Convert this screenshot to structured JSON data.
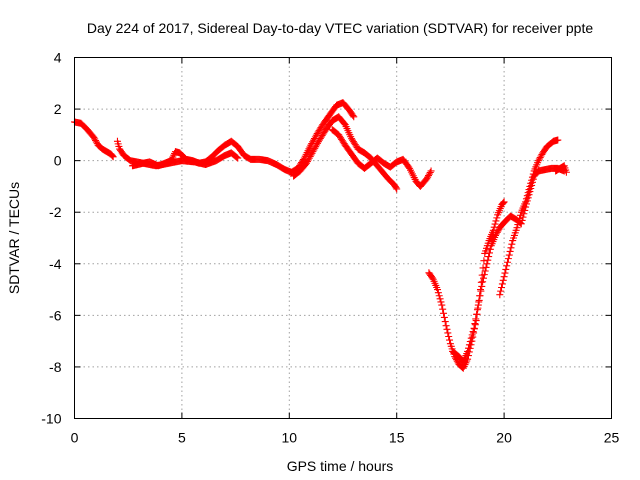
{
  "chart_data": {
    "type": "scatter",
    "title": "Day 224 of 2017, Sidereal Day-to-day VTEC variation (SDTVAR) for receiver ppte",
    "xlabel": "GPS time / hours",
    "ylabel": "SDTVAR / TECUs",
    "xlim": [
      0,
      25
    ],
    "ylim": [
      -10,
      4
    ],
    "xticks": [
      0,
      5,
      10,
      15,
      20,
      25
    ],
    "yticks": [
      -10,
      -8,
      -6,
      -4,
      -2,
      0,
      2,
      4
    ],
    "xtick_labels": [
      "0",
      "5",
      "10",
      "15",
      "20",
      "25"
    ],
    "ytick_labels": [
      "-10",
      "-8",
      "-6",
      "-4",
      "-2",
      "0",
      "2",
      "4"
    ],
    "grid": true,
    "marker": "+",
    "series": [
      {
        "name": "track-1",
        "color": "#ff0000",
        "points": [
          [
            0.0,
            1.5
          ],
          [
            0.3,
            1.45
          ],
          [
            0.6,
            1.2
          ],
          [
            0.9,
            0.9
          ],
          [
            1.1,
            0.6
          ],
          [
            1.3,
            0.45
          ],
          [
            1.5,
            0.35
          ],
          [
            1.7,
            0.25
          ],
          [
            1.8,
            0.15
          ]
        ]
      },
      {
        "name": "track-2",
        "color": "#ff0000",
        "points": [
          [
            2.0,
            0.75
          ],
          [
            2.1,
            0.45
          ],
          [
            2.3,
            0.2
          ],
          [
            2.6,
            0.0
          ],
          [
            2.9,
            -0.05
          ],
          [
            3.2,
            -0.1
          ],
          [
            3.5,
            -0.05
          ],
          [
            3.9,
            -0.2
          ],
          [
            4.2,
            -0.1
          ],
          [
            4.5,
            0.0
          ],
          [
            4.7,
            0.35
          ],
          [
            4.9,
            0.3
          ],
          [
            5.2,
            0.05
          ],
          [
            5.5,
            0.0
          ],
          [
            5.8,
            -0.1
          ],
          [
            6.1,
            -0.05
          ],
          [
            6.4,
            0.15
          ],
          [
            6.7,
            0.4
          ],
          [
            7.0,
            0.6
          ],
          [
            7.3,
            0.75
          ],
          [
            7.6,
            0.55
          ],
          [
            7.9,
            0.2
          ],
          [
            8.2,
            0.05
          ],
          [
            8.6,
            0.05
          ],
          [
            9.0,
            0.0
          ],
          [
            9.4,
            -0.15
          ],
          [
            9.8,
            -0.35
          ],
          [
            10.1,
            -0.45
          ],
          [
            10.4,
            -0.3
          ],
          [
            10.7,
            0.1
          ],
          [
            11.0,
            0.6
          ],
          [
            11.3,
            1.05
          ],
          [
            11.6,
            1.45
          ],
          [
            11.9,
            1.8
          ],
          [
            12.2,
            2.15
          ],
          [
            12.5,
            2.25
          ],
          [
            12.8,
            1.95
          ],
          [
            13.0,
            1.7
          ]
        ]
      },
      {
        "name": "track-3",
        "color": "#ff0000",
        "points": [
          [
            2.7,
            -0.2
          ],
          [
            3.2,
            -0.1
          ],
          [
            3.8,
            -0.2
          ],
          [
            4.4,
            -0.1
          ],
          [
            5.0,
            0.0
          ],
          [
            5.6,
            -0.05
          ],
          [
            6.1,
            -0.15
          ],
          [
            6.6,
            0.0
          ],
          [
            7.0,
            0.2
          ],
          [
            7.3,
            0.3
          ],
          [
            7.6,
            0.1
          ]
        ]
      },
      {
        "name": "track-4",
        "color": "#ff0000",
        "points": [
          [
            10.2,
            -0.6
          ],
          [
            10.5,
            -0.4
          ],
          [
            10.8,
            -0.1
          ],
          [
            11.1,
            0.35
          ],
          [
            11.4,
            0.8
          ],
          [
            11.7,
            1.2
          ],
          [
            12.0,
            1.55
          ],
          [
            12.3,
            1.7
          ],
          [
            12.6,
            1.4
          ],
          [
            12.9,
            0.85
          ],
          [
            13.2,
            0.45
          ],
          [
            13.5,
            0.3
          ],
          [
            13.8,
            0.1
          ],
          [
            14.0,
            -0.1
          ],
          [
            14.3,
            -0.4
          ],
          [
            14.6,
            -0.7
          ],
          [
            14.9,
            -0.95
          ],
          [
            15.0,
            -1.1
          ]
        ]
      },
      {
        "name": "track-5",
        "color": "#ff0000",
        "points": [
          [
            12.0,
            1.2
          ],
          [
            12.3,
            1.0
          ],
          [
            12.6,
            0.6
          ],
          [
            12.9,
            0.25
          ],
          [
            13.2,
            -0.1
          ],
          [
            13.5,
            -0.3
          ],
          [
            13.8,
            -0.1
          ],
          [
            14.1,
            0.1
          ],
          [
            14.4,
            -0.1
          ],
          [
            14.7,
            -0.25
          ],
          [
            15.0,
            -0.05
          ],
          [
            15.3,
            0.05
          ],
          [
            15.6,
            -0.3
          ],
          [
            15.9,
            -0.8
          ],
          [
            16.1,
            -1.0
          ],
          [
            16.4,
            -0.7
          ],
          [
            16.6,
            -0.4
          ]
        ]
      },
      {
        "name": "track-6",
        "color": "#ff0000",
        "points": [
          [
            16.5,
            -4.35
          ],
          [
            16.7,
            -4.6
          ],
          [
            16.9,
            -5.0
          ],
          [
            17.1,
            -5.6
          ],
          [
            17.3,
            -6.4
          ],
          [
            17.5,
            -7.1
          ],
          [
            17.7,
            -7.6
          ],
          [
            17.9,
            -7.9
          ],
          [
            18.1,
            -8.05
          ],
          [
            18.3,
            -7.7
          ],
          [
            18.5,
            -7.0
          ],
          [
            18.7,
            -6.2
          ],
          [
            18.9,
            -5.0
          ],
          [
            19.1,
            -3.6
          ],
          [
            19.3,
            -3.1
          ],
          [
            19.5,
            -2.7
          ],
          [
            19.7,
            -2.1
          ],
          [
            19.9,
            -1.7
          ],
          [
            20.0,
            -1.6
          ]
        ]
      },
      {
        "name": "track-7",
        "color": "#ff0000",
        "points": [
          [
            17.6,
            -7.4
          ],
          [
            17.9,
            -7.6
          ],
          [
            18.1,
            -7.8
          ],
          [
            18.3,
            -7.4
          ],
          [
            18.6,
            -6.5
          ],
          [
            18.8,
            -5.6
          ],
          [
            19.0,
            -4.7
          ],
          [
            19.2,
            -4.0
          ],
          [
            19.4,
            -3.3
          ],
          [
            19.6,
            -2.9
          ],
          [
            19.8,
            -2.6
          ],
          [
            20.0,
            -2.4
          ],
          [
            20.3,
            -2.15
          ],
          [
            20.6,
            -2.3
          ],
          [
            20.8,
            -2.45
          ],
          [
            21.0,
            -1.8
          ],
          [
            21.2,
            -1.2
          ],
          [
            21.4,
            -0.6
          ],
          [
            21.6,
            -0.4
          ],
          [
            21.9,
            -0.35
          ],
          [
            22.2,
            -0.3
          ],
          [
            22.5,
            -0.3
          ],
          [
            22.8,
            -0.4
          ]
        ]
      },
      {
        "name": "track-8",
        "color": "#ff0000",
        "points": [
          [
            19.8,
            -5.2
          ],
          [
            20.0,
            -4.5
          ],
          [
            20.2,
            -3.8
          ],
          [
            20.4,
            -3.1
          ],
          [
            20.6,
            -2.6
          ],
          [
            20.8,
            -2.0
          ],
          [
            21.0,
            -1.6
          ],
          [
            21.2,
            -1.0
          ],
          [
            21.4,
            -0.4
          ],
          [
            21.6,
            0.0
          ],
          [
            21.8,
            0.3
          ],
          [
            22.0,
            0.55
          ],
          [
            22.3,
            0.75
          ],
          [
            22.5,
            0.8
          ]
        ]
      },
      {
        "name": "track-9",
        "color": "#ff0000",
        "points": [
          [
            22.4,
            -0.4
          ],
          [
            22.6,
            -0.3
          ],
          [
            22.8,
            -0.2
          ],
          [
            22.9,
            -0.45
          ]
        ]
      }
    ]
  }
}
